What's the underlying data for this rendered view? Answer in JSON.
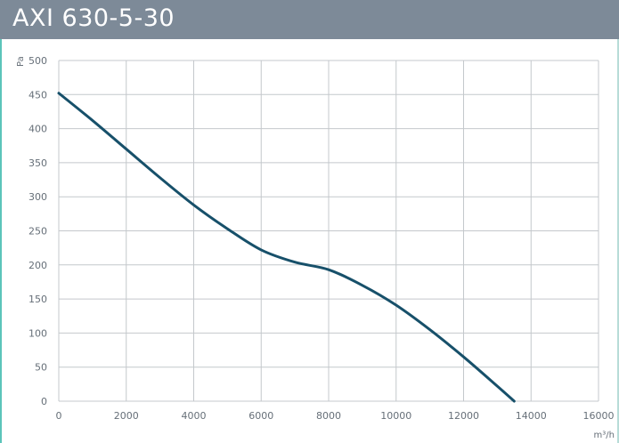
{
  "header": {
    "title": "AXI 630-5-30"
  },
  "colors": {
    "header_bg": "#7d8a98",
    "accent": "#5bc4ba",
    "curve": "#17506a",
    "grid": "#c4c8cc"
  },
  "chart_data": {
    "type": "line",
    "title": "AXI 630-5-30",
    "xlabel": "m³/h",
    "ylabel": "Pa",
    "xlim": [
      0,
      16000
    ],
    "ylim": [
      0,
      500
    ],
    "grid": true,
    "x_ticks": [
      "0",
      "2000",
      "4000",
      "6000",
      "8000",
      "10000",
      "12000",
      "14000",
      "16000"
    ],
    "y_ticks": [
      "0",
      "50",
      "100",
      "150",
      "200",
      "250",
      "300",
      "350",
      "400",
      "450",
      "500"
    ],
    "series": [
      {
        "x": [
          0,
          1000,
          2000,
          3000,
          4000,
          5000,
          6000,
          7000,
          8000,
          9000,
          10000,
          11000,
          12000,
          13000,
          13500
        ],
        "values": [
          452,
          412,
          370,
          328,
          288,
          253,
          222,
          204,
          193,
          170,
          141,
          105,
          65,
          22,
          0
        ]
      }
    ]
  }
}
